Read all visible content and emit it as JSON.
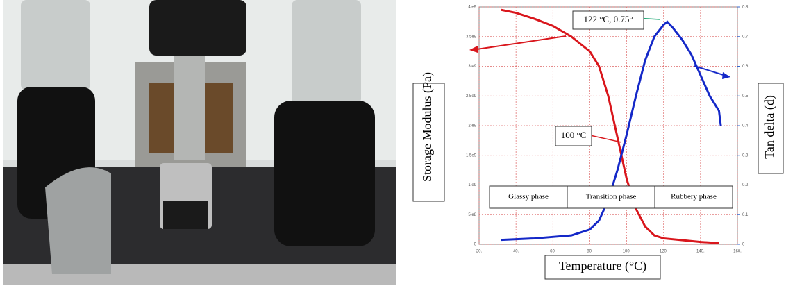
{
  "chart_data": {
    "type": "line",
    "x_label": "Temperature (°C)",
    "y_label": "Storage Modulus (Pa)",
    "y2_label": "Tan delta (d)",
    "xlim": [
      20,
      160
    ],
    "xticks": [
      {
        "value": 20,
        "label": "20."
      },
      {
        "value": 40,
        "label": "40."
      },
      {
        "value": 60,
        "label": "60."
      },
      {
        "value": 80,
        "label": "80."
      },
      {
        "value": 100,
        "label": "100."
      },
      {
        "value": 120,
        "label": "120."
      },
      {
        "value": 140,
        "label": "140."
      },
      {
        "value": 160,
        "label": "160."
      }
    ],
    "ylim": [
      0,
      4000000000
    ],
    "yticks": [
      0,
      {
        "value": 500000000,
        "label": "5.e8"
      },
      {
        "value": 1000000000,
        "label": "1.e9"
      },
      {
        "value": 1500000000,
        "label": "1.5e9"
      },
      {
        "value": 2000000000,
        "label": "2.e9"
      },
      {
        "value": 2500000000,
        "label": "2.5e9"
      },
      {
        "value": 3000000000,
        "label": "3.e9"
      },
      {
        "value": 3500000000,
        "label": "3.5e9"
      },
      {
        "value": 4000000000,
        "label": "4.e9"
      }
    ],
    "y2lim": [
      0,
      0.8
    ],
    "y2ticks": [
      0,
      0.1,
      0.2,
      0.3,
      0.4,
      0.5,
      0.6,
      0.7,
      0.8
    ],
    "grid": true,
    "series": [
      {
        "color": "#d9161c",
        "x": [
          32,
          40,
          50,
          60,
          70,
          80,
          85,
          90,
          95,
          100,
          105,
          110,
          115,
          120,
          130,
          140,
          150
        ],
        "values": [
          3950000000,
          3900000000,
          3800000000,
          3680000000,
          3500000000,
          3250000000,
          3000000000,
          2500000000,
          1800000000,
          1100000000,
          600000000,
          300000000,
          150000000,
          100000000,
          70000000,
          40000000,
          20000000
        ]
      },
      {
        "color": "#1428c8",
        "axis": "y2",
        "x": [
          32,
          50,
          60,
          70,
          80,
          85,
          90,
          95,
          100,
          105,
          110,
          115,
          120,
          122,
          125,
          130,
          135,
          140,
          145,
          150,
          151
        ],
        "values": [
          0.015,
          0.02,
          0.025,
          0.03,
          0.05,
          0.08,
          0.15,
          0.25,
          0.37,
          0.5,
          0.62,
          0.7,
          0.74,
          0.75,
          0.73,
          0.69,
          0.64,
          0.57,
          0.5,
          0.45,
          0.4
        ]
      }
    ],
    "annotations": [
      "122 °C, 0.75°",
      "100 °C",
      "Glassy phase",
      "Transition phase",
      "Rubbery phase"
    ]
  }
}
